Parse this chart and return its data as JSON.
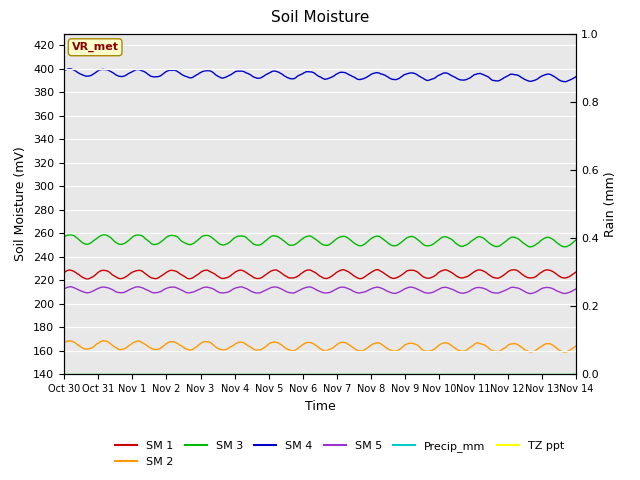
{
  "title": "Soil Moisture",
  "xlabel": "Time",
  "ylabel_left": "Soil Moisture (mV)",
  "ylabel_right": "Rain (mm)",
  "ylim_left": [
    140,
    430
  ],
  "ylim_right": [
    0.0,
    1.0
  ],
  "background_color": "#e8e8e8",
  "annotation_text": "VR_met",
  "annotation_color": "#8b0000",
  "annotation_bg": "#ffffcc",
  "x_tick_labels": [
    "Oct 30",
    "Oct 31",
    "Nov 1",
    "Nov 2",
    "Nov 3",
    "Nov 4",
    "Nov 5",
    "Nov 6",
    "Nov 7",
    "Nov 8",
    "Nov 9",
    "Nov 10",
    "Nov 11",
    "Nov 12",
    "Nov 13",
    "Nov 14"
  ],
  "yticks_left": [
    140,
    160,
    180,
    200,
    220,
    240,
    260,
    280,
    300,
    320,
    340,
    360,
    380,
    400,
    420
  ],
  "yticks_right": [
    0.0,
    0.2,
    0.4,
    0.6,
    0.8,
    1.0
  ],
  "series": {
    "SM 1": {
      "color": "#cc0000",
      "mean": 225,
      "amplitude": 3.5,
      "period": 1.0,
      "trend": 0.5,
      "noise": 0.4
    },
    "SM 2": {
      "color": "#ff9900",
      "mean": 165,
      "amplitude": 3.5,
      "period": 1.0,
      "trend": -2.5,
      "noise": 0.5
    },
    "SM 3": {
      "color": "#00bb00",
      "mean": 255,
      "amplitude": 4.0,
      "period": 1.0,
      "trend": -2.5,
      "noise": 0.4
    },
    "SM 4": {
      "color": "#0000cc",
      "mean": 397,
      "amplitude": 3.0,
      "period": 1.0,
      "trend": -5.0,
      "noise": 0.5
    },
    "SM 5": {
      "color": "#9933cc",
      "mean": 212,
      "amplitude": 2.5,
      "period": 1.0,
      "trend": -0.5,
      "noise": 0.3
    },
    "Precip_mm": {
      "color": "#00cccc",
      "mean": 0.0,
      "amplitude": 0,
      "period": 1.0,
      "trend": 0,
      "noise": 0
    },
    "TZ ppt": {
      "color": "#ffff00",
      "mean": 140.5,
      "amplitude": 0,
      "period": 1.0,
      "trend": 0,
      "noise": 0
    }
  },
  "legend_row1": [
    "SM 1",
    "SM 2",
    "SM 3",
    "SM 4",
    "SM 5",
    "Precip_mm"
  ],
  "legend_row2": [
    "TZ ppt"
  ]
}
